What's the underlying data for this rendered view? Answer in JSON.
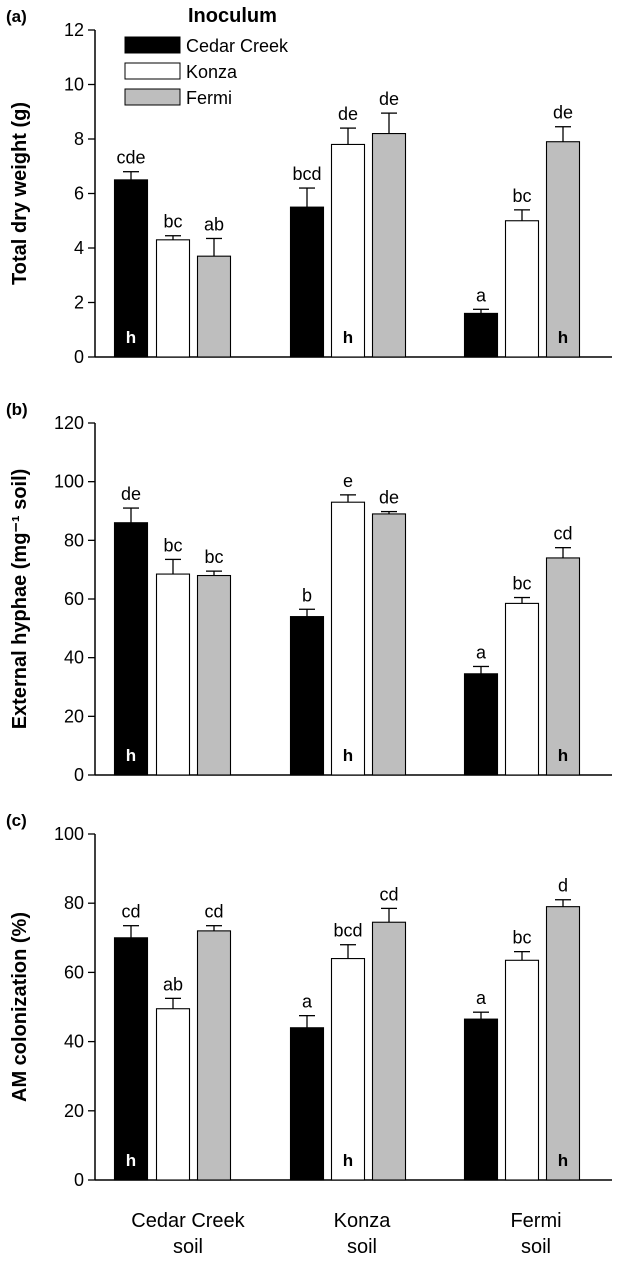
{
  "chart_data": [
    {
      "type": "bar",
      "panel": "(a)",
      "ylabel": "Total dry weight (g)",
      "ylim": [
        0,
        12
      ],
      "yticks": [
        0,
        2,
        4,
        6,
        8,
        10,
        12
      ],
      "categories": [
        "Cedar Creek soil",
        "Konza soil",
        "Fermi soil"
      ],
      "series": [
        {
          "name": "Cedar Creek",
          "values": [
            6.5,
            5.5,
            1.6
          ],
          "errors": [
            0.3,
            0.7,
            0.15
          ],
          "letters": [
            "cde",
            "bcd",
            "a"
          ]
        },
        {
          "name": "Konza",
          "values": [
            4.3,
            7.8,
            5.0
          ],
          "errors": [
            0.15,
            0.6,
            0.4
          ],
          "letters": [
            "bc",
            "de",
            "bc"
          ]
        },
        {
          "name": "Fermi",
          "values": [
            3.7,
            8.2,
            7.9
          ],
          "errors": [
            0.65,
            0.75,
            0.55
          ],
          "letters": [
            "ab",
            "de",
            "de"
          ]
        }
      ],
      "home_marker": "h",
      "home_series_index": [
        0,
        1,
        2
      ]
    },
    {
      "type": "bar",
      "panel": "(b)",
      "ylabel": "External hyphae (mg⁻¹ soil)",
      "ylim": [
        0,
        120
      ],
      "yticks": [
        0,
        20,
        40,
        60,
        80,
        100,
        120
      ],
      "categories": [
        "Cedar Creek soil",
        "Konza soil",
        "Fermi soil"
      ],
      "series": [
        {
          "name": "Cedar Creek",
          "values": [
            86,
            54,
            34.5
          ],
          "errors": [
            5,
            2.5,
            2.5
          ],
          "letters": [
            "de",
            "b",
            "a"
          ]
        },
        {
          "name": "Konza",
          "values": [
            68.5,
            93,
            58.5
          ],
          "errors": [
            5,
            2.5,
            2
          ],
          "letters": [
            "bc",
            "e",
            "bc"
          ]
        },
        {
          "name": "Fermi",
          "values": [
            68,
            89,
            74
          ],
          "errors": [
            1.5,
            0.8,
            3.5
          ],
          "letters": [
            "bc",
            "de",
            "cd"
          ]
        }
      ],
      "home_marker": "h",
      "home_series_index": [
        0,
        1,
        2
      ]
    },
    {
      "type": "bar",
      "panel": "(c)",
      "ylabel": "AM colonization (%)",
      "ylim": [
        0,
        100
      ],
      "yticks": [
        0,
        20,
        40,
        60,
        80,
        100
      ],
      "categories": [
        "Cedar Creek soil",
        "Konza soil",
        "Fermi soil"
      ],
      "series": [
        {
          "name": "Cedar Creek",
          "values": [
            70,
            44,
            46.5
          ],
          "errors": [
            3.5,
            3.5,
            2
          ],
          "letters": [
            "cd",
            "a",
            "a"
          ]
        },
        {
          "name": "Konza",
          "values": [
            49.5,
            64,
            63.5
          ],
          "errors": [
            3,
            4,
            2.5
          ],
          "letters": [
            "ab",
            "bcd",
            "bc"
          ]
        },
        {
          "name": "Fermi",
          "values": [
            72,
            74.5,
            79
          ],
          "errors": [
            1.5,
            4,
            2
          ],
          "letters": [
            "cd",
            "cd",
            "d"
          ]
        }
      ],
      "home_marker": "h",
      "home_series_index": [
        0,
        1,
        2
      ]
    }
  ],
  "legend": {
    "title": "Inoculum",
    "items": [
      "Cedar Creek",
      "Konza",
      "Fermi"
    ]
  },
  "x_categories": [
    {
      "line1": "Cedar Creek",
      "line2": "soil"
    },
    {
      "line1": "Konza",
      "line2": "soil"
    },
    {
      "line1": "Fermi",
      "line2": "soil"
    }
  ],
  "colors": {
    "Cedar Creek": "#000000",
    "Konza": "#ffffff",
    "Fermi": "#bebebe"
  }
}
